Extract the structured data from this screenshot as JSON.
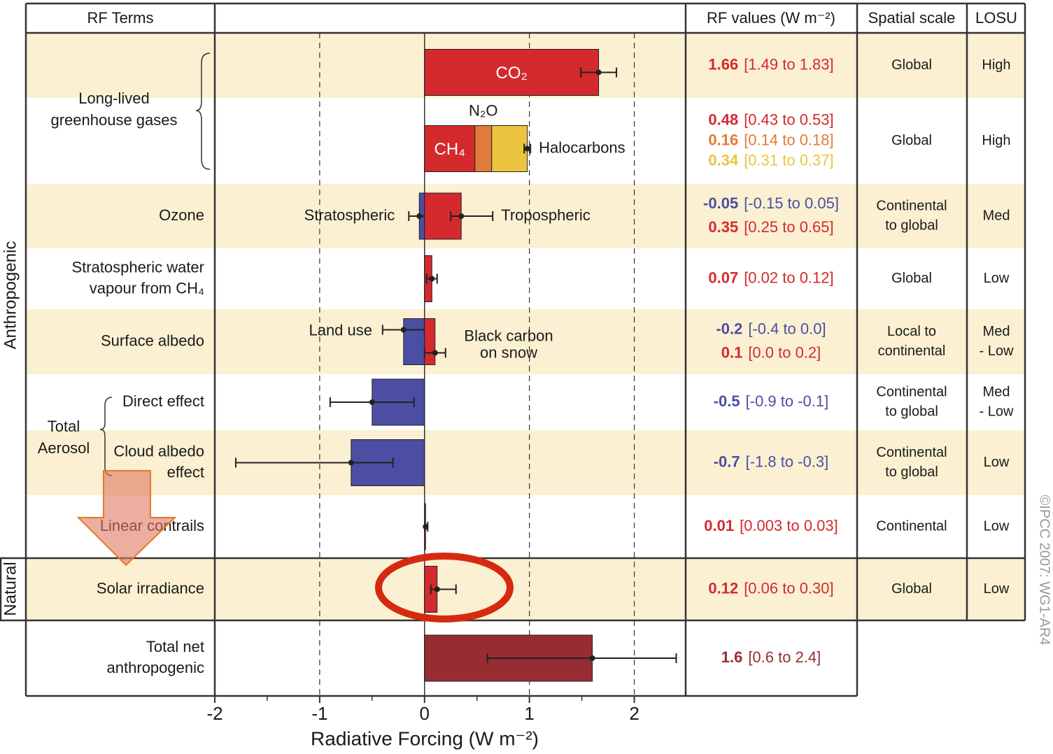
{
  "chart_data": {
    "type": "bar",
    "orientation": "horizontal",
    "headers": {
      "terms": "RF Terms",
      "values": "RF values (W m⁻²)",
      "scale": "Spatial scale",
      "losu": "LOSU"
    },
    "x_label": "Radiative Forcing  (W m⁻²)",
    "xlim": [
      -2,
      2.49
    ],
    "xticks": [
      -2,
      -1,
      0,
      1,
      2
    ],
    "minor_xticks": [
      -1.5,
      -0.5,
      0.5,
      1.5
    ],
    "grid": true,
    "band_color": "#fbf1d2",
    "group_labels": [
      "Anthropogenic",
      "Natural"
    ],
    "brace_labels": [
      [
        "Long-lived",
        "greenhouse gases"
      ],
      [
        "Total",
        "Aerosol"
      ]
    ],
    "rows": [
      {
        "bars": [
          {
            "name": [
              "CO₂"
            ],
            "value": 1.66,
            "low": 1.49,
            "high": 1.83,
            "color": "#d42a2e",
            "range_label": "[1.49 to 1.83]"
          }
        ],
        "scale": [
          "Global"
        ],
        "losu": [
          "High"
        ]
      },
      {
        "stacked": true,
        "bars": [
          {
            "name": [
              "CH₄"
            ],
            "value": 0.48,
            "color": "#d42a2e",
            "range_label": "[0.43 to 0.53]"
          },
          {
            "name": [
              "N₂O"
            ],
            "value": 0.16,
            "color": "#e07b39",
            "range_label": "[0.14 to 0.18]"
          },
          {
            "name": [
              "Halocarbons"
            ],
            "value": 0.34,
            "low": 0.31,
            "high": 0.37,
            "color": "#ecc440",
            "range_label": "[0.31 to 0.37]"
          }
        ],
        "scale": [
          "Global"
        ],
        "losu": [
          "High"
        ]
      },
      {
        "label": [
          "Ozone"
        ],
        "bars": [
          {
            "name": [
              "Stratospheric"
            ],
            "value": -0.05,
            "low": -0.15,
            "high": 0.05,
            "color": "#4b4ea3",
            "range_label": "[-0.15 to 0.05]"
          },
          {
            "name": [
              "Tropospheric"
            ],
            "value": 0.35,
            "low": 0.25,
            "high": 0.65,
            "color": "#d42a2e",
            "range_label": "[0.25 to 0.65]"
          }
        ],
        "scale": [
          "Continental",
          "to global"
        ],
        "losu": [
          "Med"
        ]
      },
      {
        "label": [
          "Stratospheric water",
          "vapour from CH₄"
        ],
        "bars": [
          {
            "value": 0.07,
            "low": 0.02,
            "high": 0.12,
            "color": "#d42a2e",
            "range_label": "[0.02 to 0.12]"
          }
        ],
        "scale": [
          "Global"
        ],
        "losu": [
          "Low"
        ]
      },
      {
        "label": [
          "Surface albedo"
        ],
        "bars": [
          {
            "name": [
              "Land use"
            ],
            "value": -0.2,
            "low": -0.4,
            "high": 0.0,
            "color": "#4b4ea3",
            "range_label": "[-0.4 to 0.0]"
          },
          {
            "name": [
              "Black carbon",
              "on snow"
            ],
            "value": 0.1,
            "low": 0.0,
            "high": 0.2,
            "color": "#d42a2e",
            "range_label": "[0.0 to 0.2]"
          }
        ],
        "scale": [
          "Local to",
          "continental"
        ],
        "losu": [
          "Med",
          "- Low"
        ]
      },
      {
        "label": [
          "Direct effect"
        ],
        "bars": [
          {
            "value": -0.5,
            "low": -0.9,
            "high": -0.1,
            "color": "#4b4ea3",
            "range_label": "[-0.9 to -0.1]"
          }
        ],
        "scale": [
          "Continental",
          "to global"
        ],
        "losu": [
          "Med",
          "- Low"
        ]
      },
      {
        "label": [
          "Cloud albedo",
          "effect"
        ],
        "bars": [
          {
            "value": -0.7,
            "low": -1.8,
            "high": -0.3,
            "color": "#4b4ea3",
            "range_label": "[-1.8 to -0.3]"
          }
        ],
        "scale": [
          "Continental",
          "to global"
        ],
        "losu": [
          "Low"
        ]
      },
      {
        "label": [
          "Linear contrails"
        ],
        "bars": [
          {
            "value": 0.01,
            "low": 0.003,
            "high": 0.03,
            "color": "#d42a2e",
            "range_label": "[0.003 to 0.03]"
          }
        ],
        "scale": [
          "Continental"
        ],
        "losu": [
          "Low"
        ]
      },
      {
        "label": [
          "Solar irradiance"
        ],
        "bars": [
          {
            "value": 0.12,
            "low": 0.06,
            "high": 0.3,
            "color": "#d42a2e",
            "range_label": "[0.06 to 0.30]"
          }
        ],
        "scale": [
          "Global"
        ],
        "losu": [
          "Low"
        ]
      },
      {
        "label": [
          "Total net",
          "anthropogenic"
        ],
        "bars": [
          {
            "value": 1.6,
            "low": 0.6,
            "high": 2.4,
            "color": "#962d33",
            "range_label": "[0.6 to 2.4]"
          }
        ]
      }
    ],
    "copyright": "©IPCC  2007: WG1-AR4"
  }
}
